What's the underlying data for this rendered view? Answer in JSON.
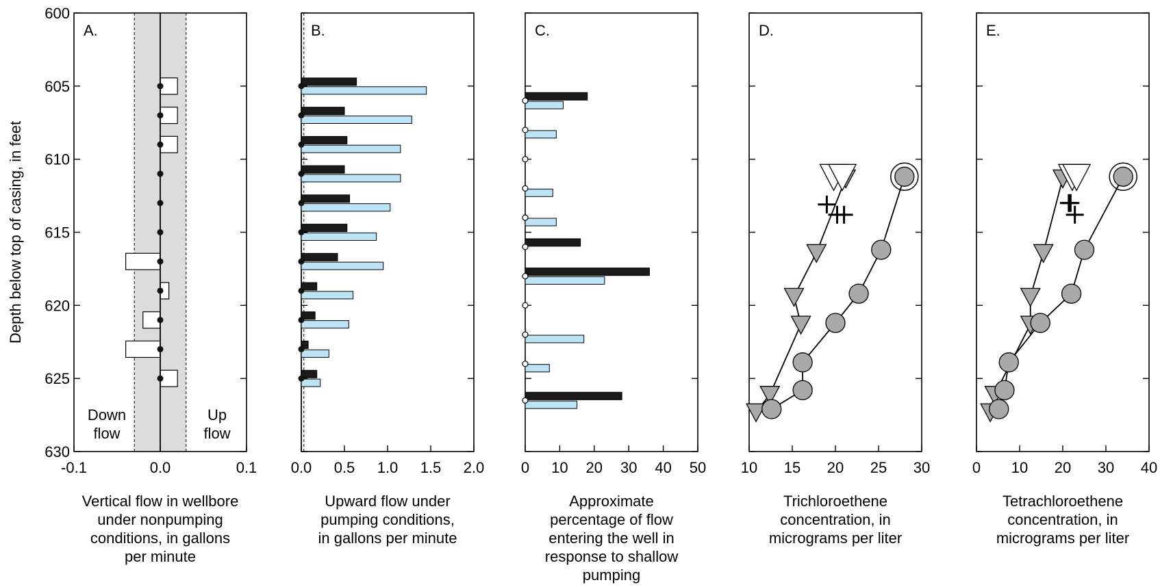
{
  "figure": {
    "y_axis_label": "Depth below top of casing, in feet",
    "y_ticks": [
      "600",
      "605",
      "610",
      "615",
      "620",
      "625",
      "630"
    ],
    "ylim": [
      600,
      630
    ]
  },
  "chart_data": [
    {
      "panel": "A.",
      "type": "bar",
      "orientation": "horizontal",
      "xlabel_lines": [
        "Vertical flow in wellbore",
        "under nonpumping",
        "conditions, in gallons",
        "per minute"
      ],
      "x_ticks": [
        "-0.1",
        "0.0",
        "0.1"
      ],
      "xlim": [
        -0.1,
        0.1
      ],
      "shaded_band": [
        -0.03,
        0.03
      ],
      "annotations": {
        "down": [
          "Down",
          "flow"
        ],
        "up": [
          "Up",
          "flow"
        ]
      },
      "series": [
        {
          "name": "",
          "depths": [
            605,
            607,
            609,
            611,
            613,
            615,
            617,
            619,
            621,
            623,
            625
          ],
          "values": [
            0.02,
            0.02,
            0.02,
            0.0,
            0.0,
            0.0,
            -0.04,
            0.01,
            -0.02,
            -0.04,
            0.02
          ]
        }
      ]
    },
    {
      "panel": "B.",
      "type": "bar",
      "orientation": "horizontal",
      "xlabel_lines": [
        "Upward flow under",
        "pumping conditions,",
        "in gallons per minute"
      ],
      "x_ticks": [
        "0.0",
        "0.5",
        "1.0",
        "1.5",
        "2.0"
      ],
      "xlim": [
        0,
        2
      ],
      "reference_line": 0.03,
      "series": [
        {
          "name": "",
          "color": "#1a1a1a",
          "depths": [
            604.7,
            606.7,
            608.7,
            610.7,
            612.7,
            614.7,
            616.7,
            618.7,
            620.7,
            622.7,
            624.7
          ],
          "values": [
            0.64,
            0.5,
            0.53,
            0.5,
            0.56,
            0.53,
            0.42,
            0.18,
            0.16,
            0.08,
            0.18
          ]
        },
        {
          "name": "",
          "color": "#bde3f7",
          "depths": [
            605.3,
            607.3,
            609.3,
            611.3,
            613.3,
            615.3,
            617.3,
            619.3,
            621.3,
            623.3,
            625.3
          ],
          "values": [
            1.45,
            1.28,
            1.15,
            1.15,
            1.03,
            0.87,
            0.95,
            0.6,
            0.55,
            0.32,
            0.22
          ]
        }
      ]
    },
    {
      "panel": "C.",
      "type": "bar",
      "orientation": "horizontal",
      "xlabel_lines": [
        "Approximate",
        "percentage of flow",
        "entering the well in",
        "response to shallow",
        "pumping"
      ],
      "x_ticks": [
        "0",
        "10",
        "20",
        "30",
        "40",
        "50"
      ],
      "xlim": [
        0,
        50
      ],
      "markers_at_depths": [
        606.0,
        608.0,
        610.0,
        612.0,
        614.0,
        616.0,
        618.0,
        620.0,
        622.0,
        624.0,
        626.5
      ],
      "series": [
        {
          "name": "",
          "color": "#1a1a1a",
          "depths": [
            605.7,
            615.7,
            617.7,
            626.2
          ],
          "values": [
            18,
            16,
            36,
            28
          ]
        },
        {
          "name": "",
          "color": "#bde3f7",
          "depths": [
            606.3,
            608.3,
            612.3,
            614.3,
            618.3,
            622.3,
            624.3,
            626.8
          ],
          "values": [
            11,
            9,
            8,
            9,
            23,
            17,
            7,
            15
          ]
        }
      ]
    },
    {
      "panel": "D.",
      "type": "scatter",
      "xlabel_lines": [
        "Trichloroethene",
        "concentration, in",
        "micrograms per liter"
      ],
      "x_ticks": [
        "10",
        "15",
        "20",
        "25",
        "30"
      ],
      "xlim": [
        10,
        30
      ],
      "series": [
        {
          "name": "",
          "marker": "triangle-down",
          "connected": true,
          "points": [
            [
              21.2,
              611.3
            ],
            [
              17.8,
              616.4
            ],
            [
              15.2,
              619.4
            ],
            [
              16.0,
              621.3
            ],
            [
              12.4,
              626.1
            ],
            [
              10.8,
              627.3
            ]
          ]
        },
        {
          "name": "",
          "marker": "circle",
          "connected": true,
          "points": [
            [
              28.0,
              611.2
            ],
            [
              25.3,
              616.2
            ],
            [
              22.7,
              619.2
            ],
            [
              20.0,
              621.2
            ],
            [
              16.2,
              623.9
            ],
            [
              16.2,
              625.8
            ],
            [
              12.6,
              627.1
            ]
          ]
        },
        {
          "name": "",
          "marker": "triangle-down-open",
          "connected": false,
          "points": [
            [
              19.8,
              611.2
            ],
            [
              20.8,
              611.2
            ]
          ]
        },
        {
          "name": "",
          "marker": "circle-open",
          "connected": false,
          "points": [
            [
              28.0,
              611.2
            ]
          ]
        },
        {
          "name": "",
          "marker": "plus",
          "connected": false,
          "points": [
            [
              19.0,
              613.1
            ],
            [
              20.2,
              613.8
            ],
            [
              21.0,
              613.8
            ]
          ]
        }
      ]
    },
    {
      "panel": "E.",
      "type": "scatter",
      "xlabel_lines": [
        "Tetrachloroethene",
        "concentration, in",
        "micrograms per liter"
      ],
      "x_ticks": [
        "0",
        "10",
        "20",
        "30",
        "40"
      ],
      "xlim": [
        0,
        40
      ],
      "series": [
        {
          "name": "",
          "marker": "triangle-down",
          "connected": true,
          "points": [
            [
              20.0,
              611.3
            ],
            [
              15.5,
              616.4
            ],
            [
              12.5,
              619.4
            ],
            [
              12.5,
              621.3
            ],
            [
              4.2,
              626.1
            ],
            [
              3.2,
              627.3
            ]
          ]
        },
        {
          "name": "",
          "marker": "circle",
          "connected": true,
          "points": [
            [
              34.0,
              611.2
            ],
            [
              25.0,
              616.2
            ],
            [
              22.0,
              619.2
            ],
            [
              14.8,
              621.2
            ],
            [
              7.5,
              623.9
            ],
            [
              6.5,
              625.8
            ],
            [
              5.2,
              627.1
            ]
          ]
        },
        {
          "name": "",
          "marker": "triangle-down-open",
          "connected": false,
          "points": [
            [
              22.2,
              611.2
            ],
            [
              23.2,
              611.2
            ]
          ]
        },
        {
          "name": "",
          "marker": "circle-open",
          "connected": false,
          "points": [
            [
              34.0,
              611.2
            ]
          ]
        },
        {
          "name": "",
          "marker": "plus",
          "connected": false,
          "points": [
            [
              21.4,
              613.0
            ],
            [
              21.8,
              613.0
            ],
            [
              22.8,
              613.8
            ]
          ]
        }
      ]
    }
  ]
}
